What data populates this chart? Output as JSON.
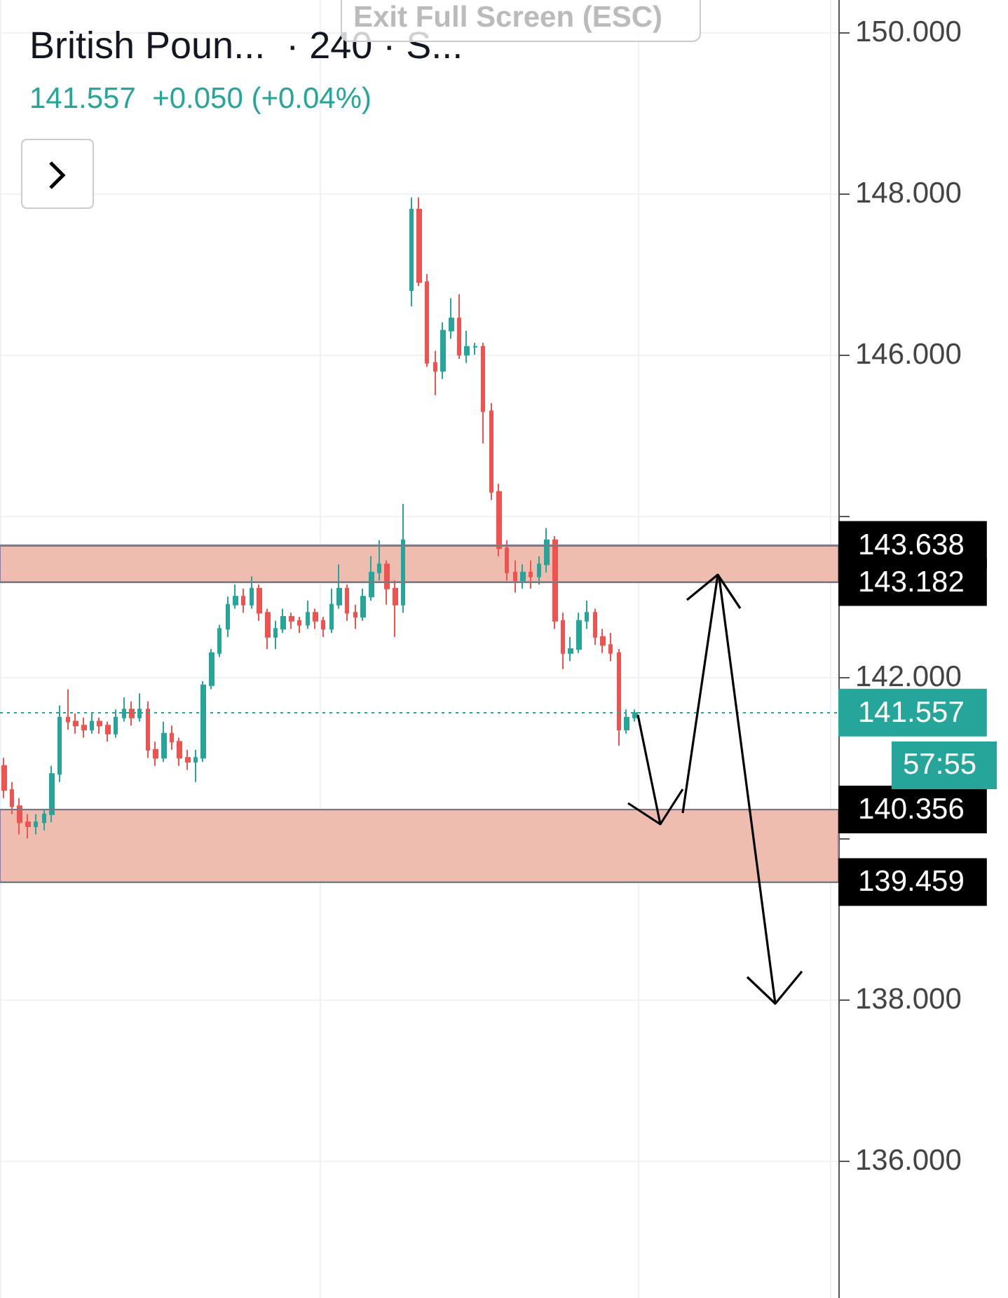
{
  "chart_data": {
    "type": "candlestick",
    "title": "British Poun...  · 240 · S...",
    "subtitle": "141.557  +0.050 (+0.04%)",
    "categories": [
      null,
      null,
      null,
      null,
      null,
      null,
      null,
      null,
      null,
      null,
      null,
      null,
      null,
      null,
      null,
      null,
      null,
      null,
      null,
      null,
      null,
      null,
      null,
      null,
      null,
      null,
      null,
      null,
      null,
      null,
      null,
      null,
      null,
      null,
      null,
      null,
      null,
      null,
      null,
      null,
      null,
      null,
      null,
      null,
      null,
      null,
      null,
      null,
      null,
      null,
      null,
      null,
      null,
      null,
      null,
      null,
      null,
      null,
      null,
      null,
      null,
      null,
      null,
      null,
      null,
      null,
      null,
      null,
      null,
      null,
      null,
      null,
      null,
      null,
      null,
      null,
      null,
      null,
      null,
      null,
      null,
      null,
      null,
      null,
      null,
      null,
      null,
      null,
      null,
      null,
      null,
      null,
      null,
      null,
      null,
      null,
      null,
      null,
      null,
      null,
      null,
      null,
      null,
      null,
      null
    ],
    "ohlc": [
      [
        140.9,
        141.0,
        140.5,
        140.6
      ],
      [
        140.6,
        140.7,
        140.3,
        140.4
      ],
      [
        140.4,
        140.5,
        140.05,
        140.2
      ],
      [
        140.2,
        140.3,
        140.0,
        140.15
      ],
      [
        140.15,
        140.3,
        140.05,
        140.2
      ],
      [
        140.2,
        140.35,
        140.1,
        140.3
      ],
      [
        140.3,
        140.9,
        140.2,
        140.8
      ],
      [
        140.8,
        141.65,
        140.7,
        141.5
      ],
      [
        141.5,
        141.85,
        141.35,
        141.45
      ],
      [
        141.45,
        141.55,
        141.3,
        141.4
      ],
      [
        141.4,
        141.5,
        141.25,
        141.35
      ],
      [
        141.35,
        141.55,
        141.3,
        141.45
      ],
      [
        141.45,
        141.5,
        141.3,
        141.4
      ],
      [
        141.4,
        141.45,
        141.2,
        141.3
      ],
      [
        141.3,
        141.6,
        141.25,
        141.5
      ],
      [
        141.5,
        141.75,
        141.45,
        141.6
      ],
      [
        141.6,
        141.7,
        141.4,
        141.5
      ],
      [
        141.5,
        141.8,
        141.45,
        141.6
      ],
      [
        141.6,
        141.7,
        141.0,
        141.1
      ],
      [
        141.1,
        141.2,
        140.9,
        141.0
      ],
      [
        141.0,
        141.45,
        140.95,
        141.3
      ],
      [
        141.3,
        141.4,
        141.1,
        141.2
      ],
      [
        141.2,
        141.25,
        140.9,
        141.0
      ],
      [
        141.0,
        141.1,
        140.85,
        140.95
      ],
      [
        140.95,
        141.1,
        140.7,
        141.0
      ],
      [
        141.0,
        141.95,
        140.95,
        141.9
      ],
      [
        141.9,
        142.35,
        141.85,
        142.3
      ],
      [
        142.3,
        142.65,
        142.25,
        142.6
      ],
      [
        142.6,
        143.0,
        142.5,
        142.9
      ],
      [
        142.9,
        143.15,
        142.85,
        143.0
      ],
      [
        143.0,
        143.1,
        142.8,
        142.9
      ],
      [
        142.9,
        143.25,
        142.85,
        143.1
      ],
      [
        143.1,
        143.15,
        142.7,
        142.8
      ],
      [
        142.8,
        142.85,
        142.35,
        142.5
      ],
      [
        142.5,
        142.7,
        142.35,
        142.6
      ],
      [
        142.6,
        142.85,
        142.55,
        142.75
      ],
      [
        142.75,
        142.8,
        142.6,
        142.7
      ],
      [
        142.7,
        142.75,
        142.55,
        142.65
      ],
      [
        142.65,
        142.95,
        142.6,
        142.8
      ],
      [
        142.8,
        142.85,
        142.6,
        142.7
      ],
      [
        142.7,
        142.75,
        142.5,
        142.6
      ],
      [
        142.6,
        143.1,
        142.55,
        142.9
      ],
      [
        142.9,
        143.4,
        142.85,
        143.1
      ],
      [
        143.1,
        143.15,
        142.7,
        142.8
      ],
      [
        142.8,
        142.9,
        142.6,
        142.75
      ],
      [
        142.75,
        143.1,
        142.7,
        143.0
      ],
      [
        143.0,
        143.5,
        142.95,
        143.3
      ],
      [
        143.3,
        143.7,
        143.2,
        143.4
      ],
      [
        143.4,
        143.45,
        142.9,
        143.1
      ],
      [
        143.1,
        143.2,
        142.5,
        142.9
      ],
      [
        142.9,
        144.15,
        142.8,
        143.7
      ],
      [
        146.8,
        147.95,
        146.6,
        147.8
      ],
      [
        147.8,
        147.95,
        146.85,
        146.9
      ],
      [
        146.9,
        147.0,
        145.85,
        145.9
      ],
      [
        145.9,
        146.05,
        145.5,
        145.8
      ],
      [
        145.8,
        146.4,
        145.7,
        146.3
      ],
      [
        146.3,
        146.7,
        146.2,
        146.45
      ],
      [
        146.45,
        146.75,
        145.95,
        146.0
      ],
      [
        146.0,
        146.3,
        145.9,
        146.1
      ],
      [
        146.1,
        146.15,
        146.0,
        146.1
      ],
      [
        146.1,
        146.15,
        144.9,
        145.3
      ],
      [
        145.3,
        145.4,
        144.2,
        144.3
      ],
      [
        144.3,
        144.4,
        143.5,
        143.6
      ],
      [
        143.6,
        143.7,
        143.2,
        143.3
      ],
      [
        143.3,
        143.45,
        143.05,
        143.2
      ],
      [
        143.2,
        143.4,
        143.1,
        143.3
      ],
      [
        143.3,
        143.45,
        143.1,
        143.25
      ],
      [
        143.25,
        143.5,
        143.15,
        143.4
      ],
      [
        143.4,
        143.85,
        143.3,
        143.7
      ],
      [
        143.7,
        143.75,
        142.6,
        142.7
      ],
      [
        142.7,
        142.8,
        142.1,
        142.3
      ],
      [
        142.3,
        142.5,
        142.2,
        142.35
      ],
      [
        142.35,
        142.8,
        142.3,
        142.7
      ],
      [
        142.7,
        142.95,
        142.6,
        142.8
      ],
      [
        142.8,
        142.85,
        142.4,
        142.5
      ],
      [
        142.5,
        142.6,
        142.3,
        142.4
      ],
      [
        142.4,
        142.55,
        142.2,
        142.3
      ],
      [
        142.3,
        142.35,
        141.15,
        141.35
      ],
      [
        141.35,
        141.6,
        141.3,
        141.5
      ],
      [
        141.5,
        141.6,
        141.45,
        141.557
      ],
      null,
      null,
      null,
      null,
      null,
      null,
      null,
      null,
      null,
      null,
      null,
      null,
      null,
      null,
      null,
      null,
      null,
      null,
      null,
      null,
      null,
      null,
      null,
      null,
      null
    ],
    "colors": [
      "#ef5350",
      "#ef5350",
      "#ef5350",
      "#ef5350",
      "#26a69a",
      "#26a69a",
      "#26a69a",
      "#26a69a",
      "#ef5350",
      "#ef5350",
      "#ef5350",
      "#26a69a",
      "#ef5350",
      "#ef5350",
      "#26a69a",
      "#26a69a",
      "#ef5350",
      "#26a69a",
      "#ef5350",
      "#ef5350",
      "#26a69a",
      "#ef5350",
      "#ef5350",
      "#ef5350",
      "#26a69a",
      "#26a69a",
      "#26a69a",
      "#26a69a",
      "#26a69a",
      "#26a69a",
      "#ef5350",
      "#26a69a",
      "#ef5350",
      "#ef5350",
      "#26a69a",
      "#26a69a",
      "#ef5350",
      "#ef5350",
      "#26a69a",
      "#ef5350",
      "#ef5350",
      "#26a69a",
      "#26a69a",
      "#ef5350",
      "#ef5350",
      "#26a69a",
      "#26a69a",
      "#26a69a",
      "#ef5350",
      "#ef5350",
      "#26a69a",
      "#26a69a",
      "#ef5350",
      "#ef5350",
      "#ef5350",
      "#26a69a",
      "#26a69a",
      "#ef5350",
      "#26a69a",
      "#26a69a",
      "#ef5350",
      "#ef5350",
      "#ef5350",
      "#ef5350",
      "#ef5350",
      "#26a69a",
      "#ef5350",
      "#26a69a",
      "#26a69a",
      "#ef5350",
      "#ef5350",
      "#26a69a",
      "#26a69a",
      "#26a69a",
      "#ef5350",
      "#ef5350",
      "#ef5350",
      "#ef5350",
      "#26a69a",
      "#26a69a",
      null,
      null,
      null,
      null,
      null,
      null,
      null,
      null,
      null,
      null,
      null,
      null,
      null,
      null,
      null,
      null,
      null,
      null,
      null,
      null,
      null,
      null,
      null,
      null,
      null
    ],
    "ylim": [
      134.3,
      150.4
    ],
    "yticks": [
      {
        "value": 136,
        "label": "136.000"
      },
      {
        "value": 138,
        "label": "138.000"
      },
      {
        "value": 140,
        "label": null
      },
      {
        "value": 142,
        "label": "142.000"
      },
      {
        "value": 144,
        "label": null
      },
      {
        "value": 146,
        "label": "146.000"
      },
      {
        "value": 148,
        "label": "148.000"
      },
      {
        "value": 150,
        "label": "150.000"
      }
    ],
    "tick_labels": "y",
    "grid": true,
    "ref_lines": [
      {
        "axis": "y",
        "value": 143.638,
        "label": "143.638",
        "color": "#787b86"
      },
      {
        "axis": "y",
        "value": 143.182,
        "label": "143.182",
        "color": "#787b86"
      },
      {
        "axis": "y",
        "value": 141.557,
        "label": "141.557",
        "color": "#26a69a",
        "line_style": "dotted"
      },
      {
        "axis": "y",
        "value": 140.356,
        "label": "140.356",
        "color": "#787b86"
      },
      {
        "axis": "y",
        "value": 139.459,
        "label": "139.459",
        "color": "#787b86"
      }
    ],
    "bands": [
      {
        "axis": "y",
        "from": 143.182,
        "to": 143.638,
        "color": "#efbcb0"
      },
      {
        "axis": "y",
        "from": 139.459,
        "to": 140.356,
        "color": "#efbcb0"
      }
    ],
    "annotations": [
      "57:55",
      "Exit Full Screen (ESC)"
    ]
  }
}
